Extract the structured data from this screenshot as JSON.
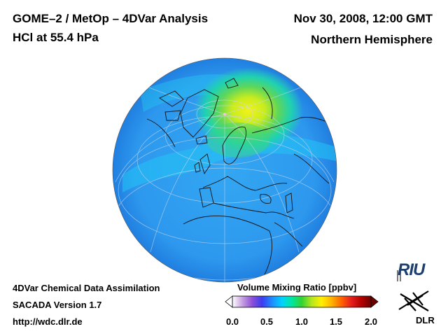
{
  "header": {
    "title_line1": "GOME–2 / MetOp – 4DVar Analysis",
    "title_line2": "HCl at 55.4 hPa",
    "date": "Nov 30, 2008, 12:00 GMT",
    "region": "Northern Hemisphere"
  },
  "footer": {
    "line1": "4DVar Chemical Data Assimilation",
    "line2": "SACADA Version 1.7",
    "line3": "http://wdc.dlr.de"
  },
  "colorbar": {
    "title": "Volume Mixing Ratio [ppbv]",
    "ticks": [
      "0.0",
      "0.5",
      "1.0",
      "1.5",
      "2.0"
    ],
    "min": 0.0,
    "max": 2.0,
    "colors": [
      "#ffffff",
      "#c8a0e0",
      "#8c50d8",
      "#3c3cf0",
      "#1e8cff",
      "#00d2ff",
      "#00e6a0",
      "#32d232",
      "#b4e61e",
      "#fff000",
      "#ffb400",
      "#ff6400",
      "#e61e1e",
      "#b40000",
      "#6e0000"
    ]
  },
  "map": {
    "projection": "orthographic",
    "center_lat": 60,
    "center_lon": 0,
    "polar_maximum_value": 1.2,
    "background_value": 0.55
  },
  "logos": {
    "riu": "RIU",
    "dlr": "DLR"
  }
}
